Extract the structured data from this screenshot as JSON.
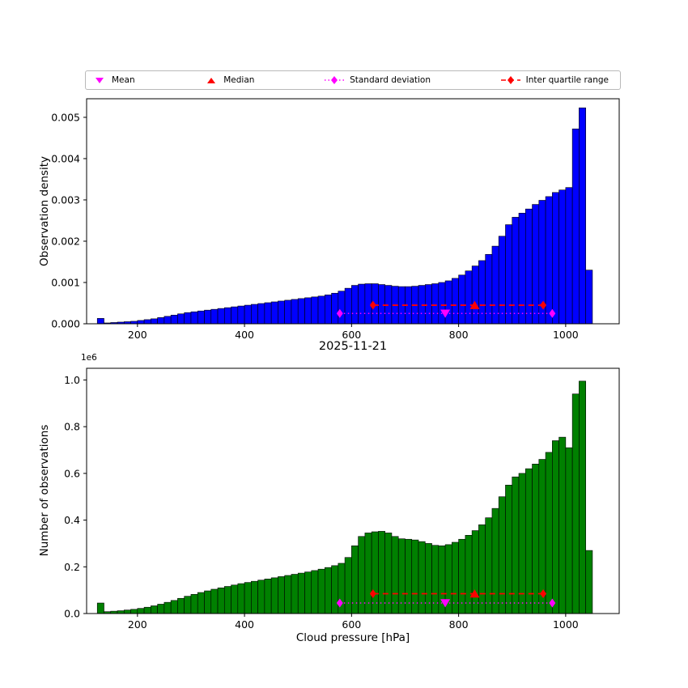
{
  "legend": {
    "items": [
      {
        "label": "Mean",
        "marker": "triangle-down",
        "color": "#ff00ff"
      },
      {
        "label": "Median",
        "marker": "triangle-up",
        "color": "#ff0000"
      },
      {
        "label": "Standard deviation",
        "marker": "diamond",
        "line": "dotted",
        "color": "#ff00ff"
      },
      {
        "label": "Inter quartile range",
        "marker": "diamond",
        "line": "dashed",
        "color": "#ff0000"
      }
    ]
  },
  "chart_data": [
    {
      "type": "bar",
      "subplot": "top",
      "ylabel": "Observation density",
      "xlim": [
        105,
        1100
      ],
      "ylim": [
        0,
        0.00545
      ],
      "xticks": [
        200,
        400,
        600,
        800,
        1000
      ],
      "yticks": [
        0,
        0.001,
        0.002,
        0.003,
        0.004,
        0.005
      ],
      "ytick_labels": [
        "0.000",
        "0.001",
        "0.002",
        "0.003",
        "0.004",
        "0.005"
      ],
      "bar_color": "#0000ff",
      "bin_start": 125,
      "bin_width": 12.5,
      "values": [
        0.00013,
        2e-05,
        3e-05,
        4e-05,
        5e-05,
        6e-05,
        8e-05,
        0.0001,
        0.00012,
        0.00015,
        0.00018,
        0.00021,
        0.00024,
        0.00027,
        0.00029,
        0.00031,
        0.00033,
        0.00035,
        0.00037,
        0.00039,
        0.00041,
        0.00043,
        0.00045,
        0.00047,
        0.00049,
        0.00051,
        0.00053,
        0.00055,
        0.00057,
        0.00059,
        0.00061,
        0.00063,
        0.00065,
        0.00067,
        0.0007,
        0.00074,
        0.00079,
        0.00086,
        0.00093,
        0.00096,
        0.00097,
        0.00097,
        0.00095,
        0.00093,
        0.00091,
        0.0009,
        0.0009,
        0.00091,
        0.00093,
        0.00095,
        0.00097,
        0.001,
        0.00104,
        0.0011,
        0.00118,
        0.00128,
        0.0014,
        0.00153,
        0.00168,
        0.00188,
        0.00212,
        0.0024,
        0.00258,
        0.00268,
        0.00278,
        0.00289,
        0.00299,
        0.00308,
        0.00318,
        0.00324,
        0.0033,
        0.00472,
        0.00523,
        0.0013
      ],
      "stats": {
        "mean_x": 775,
        "median_x": 830,
        "std_x": [
          578,
          975
        ],
        "iqr_x": [
          640,
          958
        ],
        "mean_line_y": 0.00025,
        "median_line_y": 0.00045,
        "mean_color": "#ff00ff",
        "median_color": "#ff0000"
      }
    },
    {
      "type": "bar",
      "subplot": "bottom",
      "title": "2025-11-21",
      "ylabel": "Number of observations",
      "xlabel": "Cloud pressure [hPa]",
      "offset_text": "1e6",
      "xlim": [
        105,
        1100
      ],
      "ylim": [
        0,
        1.05
      ],
      "xticks": [
        200,
        400,
        600,
        800,
        1000
      ],
      "yticks": [
        0,
        0.2,
        0.4,
        0.6,
        0.8,
        1.0
      ],
      "ytick_labels": [
        "0.0",
        "0.2",
        "0.4",
        "0.6",
        "0.8",
        "1.0"
      ],
      "bar_color": "#008000",
      "bin_start": 125,
      "bin_width": 12.5,
      "values_unit": "1e6",
      "values": [
        0.045,
        0.008,
        0.01,
        0.012,
        0.015,
        0.018,
        0.022,
        0.027,
        0.033,
        0.04,
        0.048,
        0.056,
        0.065,
        0.074,
        0.082,
        0.09,
        0.097,
        0.104,
        0.11,
        0.116,
        0.122,
        0.128,
        0.133,
        0.138,
        0.143,
        0.148,
        0.153,
        0.158,
        0.163,
        0.168,
        0.173,
        0.178,
        0.184,
        0.19,
        0.197,
        0.205,
        0.215,
        0.24,
        0.29,
        0.33,
        0.345,
        0.35,
        0.352,
        0.345,
        0.33,
        0.32,
        0.318,
        0.315,
        0.308,
        0.3,
        0.292,
        0.29,
        0.295,
        0.305,
        0.318,
        0.335,
        0.355,
        0.38,
        0.41,
        0.45,
        0.5,
        0.55,
        0.585,
        0.6,
        0.62,
        0.64,
        0.66,
        0.69,
        0.74,
        0.755,
        0.71,
        0.94,
        0.995,
        0.27
      ],
      "stats": {
        "mean_x": 775,
        "median_x": 830,
        "std_x": [
          578,
          975
        ],
        "iqr_x": [
          640,
          958
        ],
        "mean_line_y": 0.045,
        "median_line_y": 0.085,
        "mean_color": "#ff00ff",
        "median_color": "#ff0000"
      }
    }
  ]
}
